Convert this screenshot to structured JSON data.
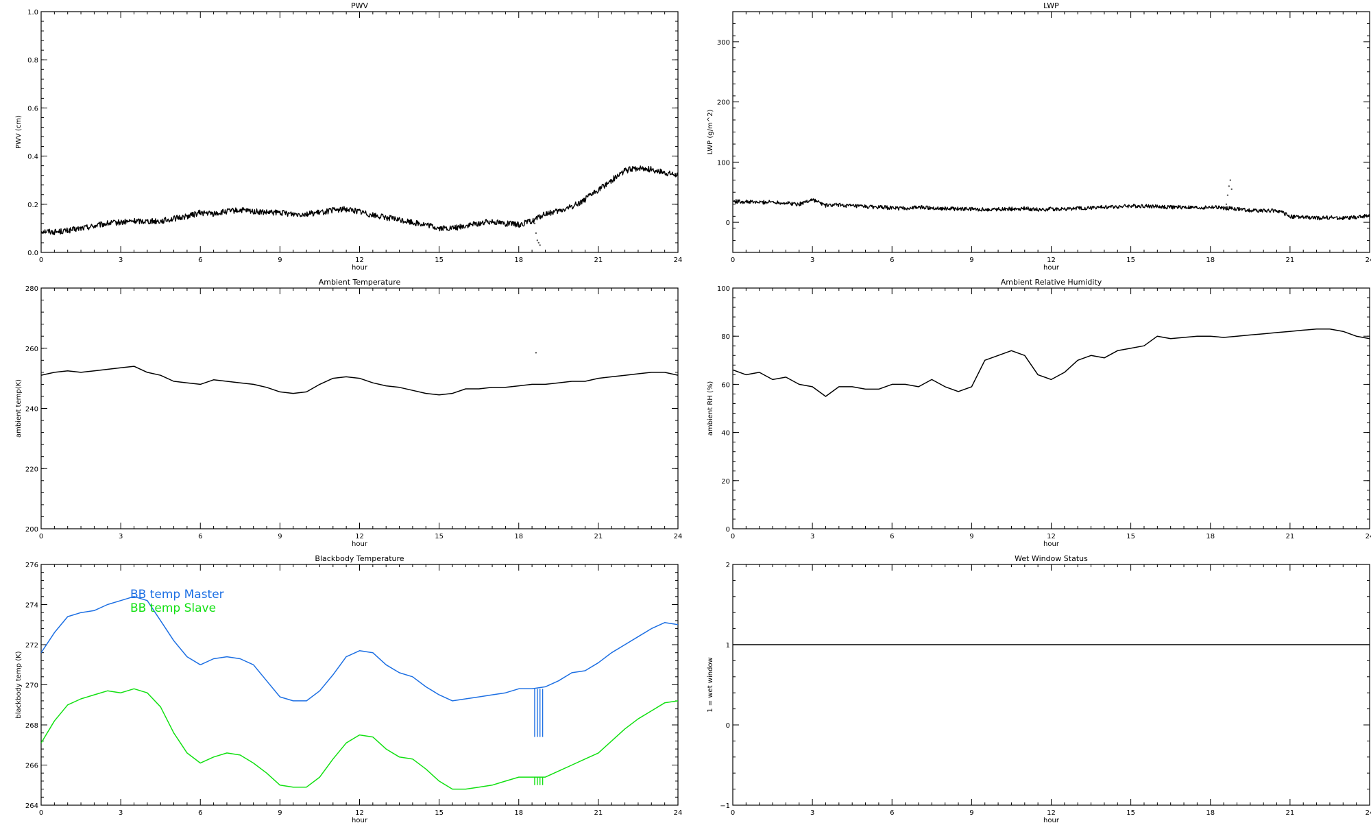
{
  "chart_data": [
    {
      "type": "line",
      "title": "PWV",
      "xlabel": "hour",
      "ylabel": "PWV (cm)",
      "xlim": [
        0,
        24
      ],
      "ylim": [
        0.0,
        1.0
      ],
      "xticks": [
        0,
        3,
        6,
        9,
        12,
        15,
        18,
        21,
        24
      ],
      "xtick_labels": [
        "0",
        "3",
        "6",
        "9",
        "12",
        "15",
        "18",
        "21",
        "24"
      ],
      "yticks": [
        0.0,
        0.2,
        0.4,
        0.6,
        0.8,
        1.0
      ],
      "ytick_labels": [
        "0.0",
        "0.2",
        "0.4",
        "0.6",
        "0.8",
        "1.0"
      ],
      "series": [
        {
          "color": "#000000",
          "style": "noisy-line",
          "x": [
            0,
            0.5,
            1,
            1.5,
            2,
            2.5,
            3,
            3.5,
            4,
            4.5,
            5,
            5.5,
            6,
            6.5,
            7,
            7.5,
            8,
            8.5,
            9,
            9.5,
            10,
            10.5,
            11,
            11.5,
            12,
            12.5,
            13,
            13.5,
            14,
            14.5,
            15,
            15.5,
            16,
            16.5,
            17,
            17.5,
            18,
            18.5,
            19,
            19.5,
            20,
            20.5,
            21,
            21.5,
            22,
            22.5,
            23,
            23.5,
            24
          ],
          "y": [
            0.09,
            0.085,
            0.09,
            0.1,
            0.11,
            0.12,
            0.125,
            0.13,
            0.13,
            0.13,
            0.14,
            0.15,
            0.165,
            0.16,
            0.17,
            0.175,
            0.17,
            0.165,
            0.165,
            0.16,
            0.16,
            0.165,
            0.175,
            0.18,
            0.17,
            0.155,
            0.145,
            0.135,
            0.125,
            0.115,
            0.1,
            0.1,
            0.11,
            0.12,
            0.13,
            0.12,
            0.115,
            0.13,
            0.16,
            0.17,
            0.19,
            0.22,
            0.26,
            0.3,
            0.34,
            0.35,
            0.345,
            0.33,
            0.32
          ]
        }
      ],
      "outliers": {
        "x": [
          18.6,
          18.65,
          18.7,
          18.75,
          18.8
        ],
        "y": [
          0.12,
          0.08,
          0.05,
          0.04,
          0.03
        ]
      }
    },
    {
      "type": "line",
      "title": "LWP",
      "xlabel": "hour",
      "ylabel": "LWP (g/m^2)",
      "xlim": [
        0,
        24
      ],
      "ylim": [
        -50,
        350
      ],
      "xticks": [
        0,
        3,
        6,
        9,
        12,
        15,
        18,
        21,
        24
      ],
      "xtick_labels": [
        "0",
        "3",
        "6",
        "9",
        "12",
        "15",
        "18",
        "21",
        "24"
      ],
      "yticks": [
        0,
        100,
        200,
        300
      ],
      "ytick_labels": [
        "0",
        "100",
        "200",
        "300"
      ],
      "series": [
        {
          "color": "#000000",
          "style": "noisy-line",
          "x": [
            0,
            0.5,
            1,
            1.5,
            2,
            2.5,
            3,
            3.5,
            4,
            4.5,
            5,
            5.5,
            6,
            6.5,
            7,
            7.5,
            8,
            8.5,
            9,
            9.5,
            10,
            10.5,
            11,
            11.5,
            12,
            12.5,
            13,
            13.5,
            14,
            14.5,
            15,
            15.5,
            16,
            16.5,
            17,
            17.5,
            18,
            18.5,
            19,
            19.5,
            20,
            20.5,
            21,
            21.5,
            22,
            22.5,
            23,
            23.5,
            24
          ],
          "y": [
            35,
            34,
            33,
            34,
            32,
            30,
            38,
            28,
            29,
            27,
            26,
            25,
            24,
            23,
            25,
            24,
            23,
            22,
            22,
            21,
            22,
            22,
            23,
            21,
            22,
            22,
            23,
            24,
            25,
            26,
            27,
            27,
            26,
            25,
            25,
            24,
            25,
            24,
            22,
            20,
            19,
            20,
            10,
            8,
            7,
            8,
            7,
            8,
            12
          ]
        }
      ],
      "outliers": {
        "x": [
          18.6,
          18.65,
          18.7,
          18.75,
          18.8
        ],
        "y": [
          30,
          45,
          60,
          70,
          55
        ]
      }
    },
    {
      "type": "line",
      "title": "Ambient Temperature",
      "xlabel": "hour",
      "ylabel": "ambient temp(K)",
      "xlim": [
        0,
        24
      ],
      "ylim": [
        200,
        280
      ],
      "xticks": [
        0,
        3,
        6,
        9,
        12,
        15,
        18,
        21,
        24
      ],
      "xtick_labels": [
        "0",
        "3",
        "6",
        "9",
        "12",
        "15",
        "18",
        "21",
        "24"
      ],
      "yticks": [
        200,
        220,
        240,
        260,
        280
      ],
      "ytick_labels": [
        "200",
        "220",
        "240",
        "260",
        "280"
      ],
      "series": [
        {
          "color": "#000000",
          "style": "line",
          "x": [
            0,
            0.5,
            1,
            1.5,
            2,
            2.5,
            3,
            3.5,
            4,
            4.5,
            5,
            5.5,
            6,
            6.5,
            7,
            7.5,
            8,
            8.5,
            9,
            9.5,
            10,
            10.5,
            11,
            11.5,
            12,
            12.5,
            13,
            13.5,
            14,
            14.5,
            15,
            15.5,
            16,
            16.5,
            17,
            17.5,
            18,
            18.5,
            19,
            19.5,
            20,
            20.5,
            21,
            21.5,
            22,
            22.5,
            23,
            23.5,
            24
          ],
          "y": [
            251,
            252,
            252.5,
            252,
            252.5,
            253,
            253.5,
            254,
            252,
            251,
            249,
            248.5,
            248,
            249.5,
            249,
            248.5,
            248,
            247,
            245.5,
            245,
            245.5,
            248,
            250,
            250.5,
            250,
            248.5,
            247.5,
            247,
            246,
            245,
            244.5,
            245,
            246.5,
            246.5,
            247,
            247,
            247.5,
            248,
            248,
            248.5,
            249,
            249,
            250,
            250.5,
            251,
            251.5,
            252,
            252,
            251
          ]
        }
      ],
      "outliers": {
        "x": [
          18.65
        ],
        "y": [
          258.5
        ]
      }
    },
    {
      "type": "line",
      "title": "Ambient Relative Humidity",
      "xlabel": "hour",
      "ylabel": "ambient RH (%)",
      "xlim": [
        0,
        24
      ],
      "ylim": [
        0,
        100
      ],
      "xticks": [
        0,
        3,
        6,
        9,
        12,
        15,
        18,
        21,
        24
      ],
      "xtick_labels": [
        "0",
        "3",
        "6",
        "9",
        "12",
        "15",
        "18",
        "21",
        "24"
      ],
      "yticks": [
        0,
        20,
        40,
        60,
        80,
        100
      ],
      "ytick_labels": [
        "0",
        "20",
        "40",
        "60",
        "80",
        "100"
      ],
      "series": [
        {
          "color": "#000000",
          "style": "line",
          "x": [
            0,
            0.5,
            1,
            1.5,
            2,
            2.5,
            3,
            3.5,
            4,
            4.5,
            5,
            5.5,
            6,
            6.5,
            7,
            7.5,
            8,
            8.5,
            9,
            9.5,
            10,
            10.5,
            11,
            11.5,
            12,
            12.5,
            13,
            13.5,
            14,
            14.5,
            15,
            15.5,
            16,
            16.5,
            17,
            17.5,
            18,
            18.5,
            19,
            19.5,
            20,
            20.5,
            21,
            21.5,
            22,
            22.5,
            23,
            23.5,
            24
          ],
          "y": [
            66,
            64,
            65,
            62,
            63,
            60,
            59,
            55,
            59,
            59,
            58,
            58,
            60,
            60,
            59,
            62,
            59,
            57,
            59,
            70,
            72,
            74,
            72,
            64,
            62,
            65,
            70,
            72,
            71,
            74,
            75,
            76,
            80,
            79,
            79.5,
            80,
            80,
            79.5,
            80,
            80.5,
            81,
            81.5,
            82,
            82.5,
            83,
            83,
            82,
            80,
            79
          ]
        }
      ]
    },
    {
      "type": "line",
      "title": "Blackbody Temperature",
      "xlabel": "hour",
      "ylabel": "blackbody temp (K)",
      "xlim": [
        0,
        24
      ],
      "ylim": [
        264,
        276
      ],
      "xticks": [
        0,
        3,
        6,
        9,
        12,
        15,
        18,
        21,
        24
      ],
      "xtick_labels": [
        "0",
        "3",
        "6",
        "9",
        "12",
        "15",
        "18",
        "21",
        "24"
      ],
      "yticks": [
        264,
        266,
        268,
        270,
        272,
        274,
        276
      ],
      "ytick_labels": [
        "264",
        "266",
        "268",
        "270",
        "272",
        "274",
        "276"
      ],
      "legend": {
        "placement": "top-left"
      },
      "series": [
        {
          "name": "BB temp Master",
          "color": "#1c6fe3",
          "style": "line",
          "x": [
            0,
            0.5,
            1,
            1.5,
            2,
            2.5,
            3,
            3.5,
            4,
            4.5,
            5,
            5.5,
            6,
            6.5,
            7,
            7.5,
            8,
            8.5,
            9,
            9.5,
            10,
            10.5,
            11,
            11.5,
            12,
            12.5,
            13,
            13.5,
            14,
            14.5,
            15,
            15.5,
            16,
            16.5,
            17,
            17.5,
            18,
            18.5,
            19,
            19.5,
            20,
            20.5,
            21,
            21.5,
            22,
            22.5,
            23,
            23.5,
            24
          ],
          "y": [
            271.6,
            272.6,
            273.4,
            273.6,
            273.7,
            274.0,
            274.2,
            274.4,
            274.2,
            273.2,
            272.2,
            271.4,
            271.0,
            271.3,
            271.4,
            271.3,
            271.0,
            270.2,
            269.4,
            269.2,
            269.2,
            269.7,
            270.5,
            271.4,
            271.7,
            271.6,
            271.0,
            270.6,
            270.4,
            269.9,
            269.5,
            269.2,
            269.3,
            269.4,
            269.5,
            269.6,
            269.8,
            269.8,
            269.9,
            270.2,
            270.6,
            270.7,
            271.1,
            271.6,
            272.0,
            272.4,
            272.8,
            273.1,
            273.0
          ]
        },
        {
          "name": "BB temp Slave",
          "color": "#11e011",
          "style": "line",
          "x": [
            0,
            0.5,
            1,
            1.5,
            2,
            2.5,
            3,
            3.5,
            4,
            4.5,
            5,
            5.5,
            6,
            6.5,
            7,
            7.5,
            8,
            8.5,
            9,
            9.5,
            10,
            10.5,
            11,
            11.5,
            12,
            12.5,
            13,
            13.5,
            14,
            14.5,
            15,
            15.5,
            16,
            16.5,
            17,
            17.5,
            18,
            18.5,
            19,
            19.5,
            20,
            20.5,
            21,
            21.5,
            22,
            22.5,
            23,
            23.5,
            24
          ],
          "y": [
            267.1,
            268.2,
            269.0,
            269.3,
            269.5,
            269.7,
            269.6,
            269.8,
            269.6,
            268.9,
            267.6,
            266.6,
            266.1,
            266.4,
            266.6,
            266.5,
            266.1,
            265.6,
            265.0,
            264.9,
            264.9,
            265.4,
            266.3,
            267.1,
            267.5,
            267.4,
            266.8,
            266.4,
            266.3,
            265.8,
            265.2,
            264.8,
            264.8,
            264.9,
            265.0,
            265.2,
            265.4,
            265.4,
            265.4,
            265.7,
            266.0,
            266.3,
            266.6,
            267.2,
            267.8,
            268.3,
            268.7,
            269.1,
            269.2
          ]
        }
      ],
      "spikes": [
        {
          "color": "#1c6fe3",
          "top": 269.8,
          "bottom": 267.4,
          "x": [
            18.6,
            18.7,
            18.8,
            18.9
          ]
        },
        {
          "color": "#11e011",
          "top": 265.4,
          "bottom": 265.0,
          "x": [
            18.6,
            18.7,
            18.8,
            18.9
          ]
        }
      ]
    },
    {
      "type": "line",
      "title": "Wet Window Status",
      "xlabel": "hour",
      "ylabel": "1 = wet window",
      "xlim": [
        0,
        24
      ],
      "ylim": [
        -1,
        2
      ],
      "xticks": [
        0,
        3,
        6,
        9,
        12,
        15,
        18,
        21,
        24
      ],
      "xtick_labels": [
        "0",
        "3",
        "6",
        "9",
        "12",
        "15",
        "18",
        "21",
        "24"
      ],
      "yticks": [
        -1,
        0,
        1,
        2
      ],
      "ytick_labels": [
        "−1",
        "0",
        "1",
        "2"
      ],
      "series": [
        {
          "color": "#000000",
          "style": "line",
          "x": [
            0,
            24
          ],
          "y": [
            1,
            1
          ]
        }
      ]
    }
  ]
}
